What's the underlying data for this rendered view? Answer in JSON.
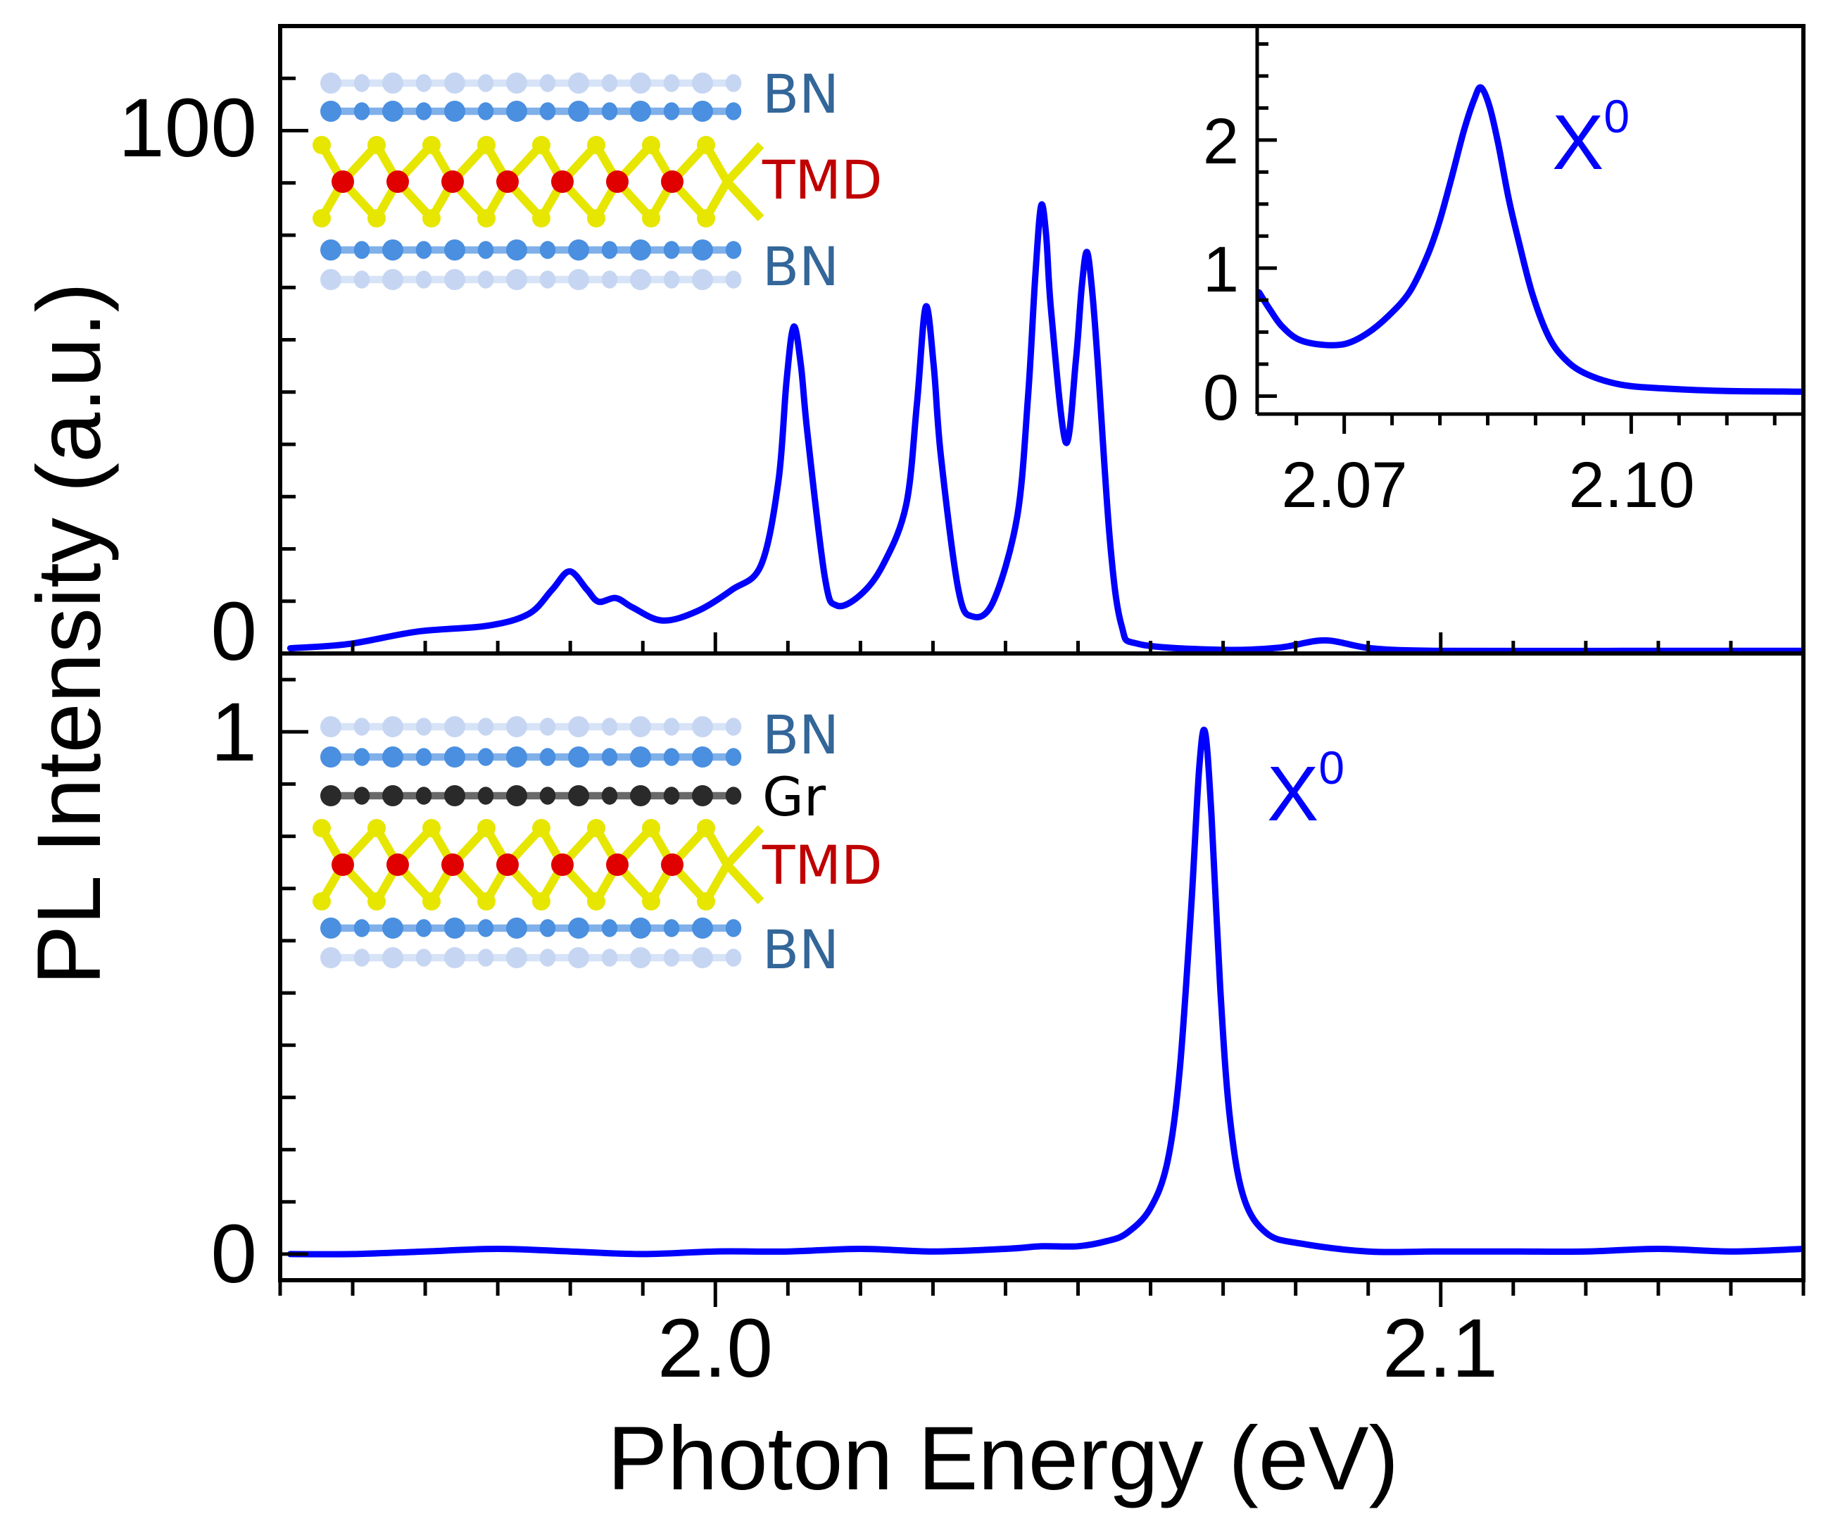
{
  "chart_data": [
    {
      "id": "top-panel",
      "type": "line",
      "title": "",
      "xlabel": "Photon Energy (eV)",
      "ylabel": "PL Intensity (a.u.)",
      "xlim": [
        1.94,
        2.15
      ],
      "ylim": [
        0,
        120
      ],
      "x_ticks": [
        {
          "value": 2.0,
          "label": "2.0"
        },
        {
          "value": 2.1,
          "label": "2.1"
        }
      ],
      "x_minor_step": 0.01,
      "y_ticks": [
        {
          "value": 0,
          "label": "0"
        },
        {
          "value": 100,
          "label": "100"
        }
      ],
      "y_minor_step": 10,
      "grid": false,
      "series": [
        {
          "name": "BN/TMD/BN",
          "color": "#0000FF",
          "x": [
            1.9414,
            1.9494,
            1.959,
            1.9686,
            1.9743,
            1.9775,
            1.9799,
            1.9823,
            1.9839,
            1.9863,
            1.9886,
            1.9927,
            1.9975,
            2.0023,
            2.0063,
            2.0087,
            2.0098,
            2.0108,
            2.0118,
            2.0127,
            2.0151,
            2.0167,
            2.0199,
            2.0231,
            2.0263,
            2.0278,
            2.029,
            2.0301,
            2.0311,
            2.0335,
            2.0354,
            2.0383,
            2.0416,
            2.0431,
            2.0441,
            2.0449,
            2.0456,
            2.0463,
            2.0483,
            2.0497,
            2.0505,
            2.0512,
            2.0519,
            2.0527,
            2.0544,
            2.056,
            2.0584,
            2.0696,
            2.0776,
            2.084,
            2.0904,
            2.1,
            2.125,
            2.15
          ],
          "y": [
            1.0,
            1.8,
            4.2,
            5.3,
            7.6,
            12.2,
            15.7,
            12.2,
            9.9,
            10.6,
            8.8,
            6.3,
            8.1,
            12.2,
            16.9,
            33.0,
            52.0,
            62.5,
            55.0,
            42.0,
            14.5,
            9.2,
            11.1,
            16.9,
            28.4,
            48.0,
            66.3,
            55.0,
            37.6,
            12.2,
            7.1,
            9.9,
            26.1,
            49.0,
            72.0,
            85.6,
            80.0,
            65.3,
            40.4,
            56.0,
            70.0,
            76.8,
            70.0,
            56.0,
            21.5,
            5.3,
            1.8,
            0.7,
            1.1,
            2.5,
            1.0,
            0.5,
            0.5,
            0.5
          ]
        }
      ],
      "annotations": [
        {
          "text": "BN",
          "color": "#336699"
        },
        {
          "text": "TMD",
          "color": "#C00000"
        },
        {
          "text": "BN",
          "color": "#336699"
        }
      ]
    },
    {
      "id": "top-inset",
      "type": "line",
      "title": "",
      "xlabel": "",
      "ylabel": "",
      "xlim": [
        2.0609,
        2.118
      ],
      "ylim": [
        -0.14,
        2.89
      ],
      "x_ticks": [
        {
          "value": 2.07,
          "label": "2.07"
        },
        {
          "value": 2.1,
          "label": "2.10"
        }
      ],
      "x_minor_step": 0.005,
      "y_ticks": [
        {
          "value": 0,
          "label": "0"
        },
        {
          "value": 1,
          "label": "1"
        },
        {
          "value": 2,
          "label": "2"
        }
      ],
      "y_minor_step": 0.25,
      "grid": false,
      "series": [
        {
          "name": "X0 zoom",
          "color": "#0000FF",
          "x": [
            2.0611,
            2.0622,
            2.0635,
            2.0653,
            2.0679,
            2.0702,
            2.0724,
            2.0746,
            2.0768,
            2.0786,
            2.0799,
            2.0812,
            2.0825,
            2.0836,
            2.0843,
            2.0852,
            2.0861,
            2.0872,
            2.0883,
            2.0897,
            2.0914,
            2.0932,
            2.0954,
            2.0989,
            2.1034,
            2.11,
            2.118
          ],
          "y": [
            0.81,
            0.68,
            0.545,
            0.44,
            0.4,
            0.41,
            0.49,
            0.625,
            0.81,
            1.08,
            1.35,
            1.7,
            2.07,
            2.32,
            2.41,
            2.26,
            1.97,
            1.54,
            1.19,
            0.79,
            0.46,
            0.28,
            0.17,
            0.09,
            0.06,
            0.04,
            0.035
          ]
        }
      ],
      "annotations": [
        {
          "text": "X",
          "superscript": "0",
          "color": "#0000FF"
        }
      ]
    },
    {
      "id": "bottom-panel",
      "type": "line",
      "title": "",
      "xlabel": "Photon Energy (eV)",
      "ylabel": "PL Intensity (a.u.)",
      "xlim": [
        1.94,
        2.15
      ],
      "ylim": [
        -0.05,
        1.15
      ],
      "x_ticks": [
        {
          "value": 2.0,
          "label": "2.0"
        },
        {
          "value": 2.1,
          "label": "2.1"
        }
      ],
      "x_minor_step": 0.01,
      "y_ticks": [
        {
          "value": 0,
          "label": "0"
        },
        {
          "value": 1,
          "label": "1"
        }
      ],
      "y_minor_step": 0.1,
      "grid": false,
      "series": [
        {
          "name": "BN/Gr/TMD/BN",
          "color": "#0000FF",
          "x": [
            1.9414,
            1.95,
            1.96,
            1.97,
            1.98,
            1.99,
            2.0,
            2.01,
            2.02,
            2.03,
            2.04,
            2.045,
            2.05,
            2.054,
            2.0567,
            2.0599,
            2.0623,
            2.064,
            2.0656,
            2.0667,
            2.0675,
            2.0684,
            2.0696,
            2.0709,
            2.0728,
            2.076,
            2.0808,
            2.09,
            2.1,
            2.11,
            2.12,
            2.13,
            2.14,
            2.15
          ],
          "y": [
            0.0,
            0.0,
            0.005,
            0.01,
            0.005,
            0.0,
            0.005,
            0.005,
            0.01,
            0.005,
            0.01,
            0.015,
            0.015,
            0.025,
            0.04,
            0.086,
            0.175,
            0.35,
            0.665,
            0.93,
            1.0,
            0.84,
            0.51,
            0.265,
            0.11,
            0.04,
            0.02,
            0.005,
            0.005,
            0.005,
            0.005,
            0.01,
            0.005,
            0.01
          ]
        }
      ],
      "annotations": [
        {
          "text": "X",
          "superscript": "0",
          "color": "#0000FF"
        },
        {
          "text": "BN",
          "color": "#336699"
        },
        {
          "text": "Gr",
          "color": "#000000"
        },
        {
          "text": "TMD",
          "color": "#C00000"
        },
        {
          "text": "BN",
          "color": "#336699"
        }
      ]
    }
  ],
  "figure": {
    "xlabel": "Photon Energy (eV)",
    "ylabel": "PL Intensity (a.u.)",
    "line_color": "#0000FF",
    "top": {
      "y_tick_labels": [
        "0",
        "100"
      ],
      "layer_labels": [
        {
          "text": "BN",
          "color": "#336699"
        },
        {
          "text": "TMD",
          "color": "#C00000"
        },
        {
          "text": "BN",
          "color": "#336699"
        }
      ],
      "inset": {
        "x_tick_labels": [
          "2.07",
          "2.10"
        ],
        "y_tick_labels": [
          "0",
          "1",
          "2"
        ],
        "peak_label": "X",
        "peak_label_sup": "0"
      }
    },
    "bottom": {
      "y_tick_labels": [
        "0",
        "1"
      ],
      "peak_label": "X",
      "peak_label_sup": "0",
      "layer_labels": [
        {
          "text": "BN",
          "color": "#336699"
        },
        {
          "text": "Gr",
          "color": "#000000"
        },
        {
          "text": "TMD",
          "color": "#C00000"
        },
        {
          "text": "BN",
          "color": "#336699"
        }
      ]
    },
    "x_tick_labels": [
      "2.0",
      "2.1"
    ],
    "structure_colors": {
      "bn_light": "#B8CCF0",
      "bn_dark": "#4A8FE0",
      "graphene": "#2A2A2A",
      "metal": "#E00000",
      "chalcogen": "#E6E600"
    }
  }
}
